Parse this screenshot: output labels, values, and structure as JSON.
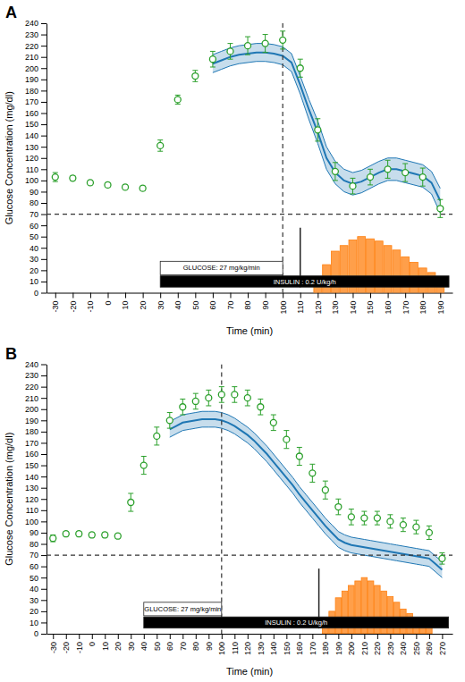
{
  "chart_data": [
    {
      "type": "combo",
      "title": "A",
      "xlabel": "Time (min)",
      "ylabel": "Glucose Concentration (mg/dl)",
      "xlim": [
        -35,
        197
      ],
      "ylim": [
        0,
        240
      ],
      "xticks": [
        -30,
        -20,
        -10,
        0,
        10,
        20,
        30,
        40,
        50,
        60,
        70,
        80,
        90,
        100,
        110,
        120,
        130,
        140,
        150,
        160,
        170,
        180,
        190
      ],
      "yticks": [
        0,
        10,
        20,
        30,
        40,
        50,
        60,
        70,
        80,
        90,
        100,
        110,
        120,
        130,
        140,
        150,
        160,
        170,
        180,
        190,
        200,
        210,
        220,
        230,
        240
      ],
      "series": [
        {
          "type": "band",
          "x": [
            60,
            65,
            70,
            75,
            80,
            85,
            90,
            95,
            100,
            105,
            110,
            115,
            120,
            125,
            130,
            135,
            140,
            145,
            150,
            155,
            160,
            165,
            170,
            175,
            180,
            185,
            190
          ],
          "values": [
            204,
            207,
            210,
            212,
            213,
            214,
            214,
            213,
            211,
            205,
            185,
            163,
            143,
            120,
            107,
            100,
            97,
            99,
            103,
            107,
            110,
            110,
            108,
            106,
            104,
            98,
            82
          ],
          "upper": [
            212,
            215,
            218,
            220,
            221,
            222,
            222,
            221,
            219,
            213,
            193,
            172,
            153,
            130,
            117,
            110,
            107,
            109,
            113,
            117,
            120,
            120,
            118,
            116,
            114,
            108,
            93
          ],
          "lower": [
            196,
            199,
            202,
            204,
            205,
            206,
            206,
            205,
            203,
            197,
            177,
            154,
            133,
            110,
            97,
            90,
            87,
            89,
            93,
            97,
            100,
            100,
            98,
            96,
            94,
            88,
            71
          ]
        },
        {
          "type": "bar",
          "x": [
            120,
            125,
            130,
            135,
            140,
            145,
            150,
            155,
            160,
            165,
            170,
            175,
            180,
            185,
            190
          ],
          "values": [
            12,
            25,
            37,
            42,
            47,
            50,
            48,
            46,
            42,
            38,
            32,
            27,
            22,
            18,
            14
          ]
        },
        {
          "type": "scatter",
          "marker": "circle",
          "x": [
            -30,
            -20,
            -10,
            0,
            10,
            20,
            30,
            40,
            50,
            60,
            70,
            80,
            90,
            100,
            110,
            120,
            130,
            140,
            150,
            160,
            170,
            180,
            190
          ],
          "values": [
            103,
            102,
            98,
            96,
            94,
            93,
            131,
            172,
            193,
            208,
            215,
            220,
            222,
            225,
            200,
            145,
            108,
            95,
            103,
            110,
            107,
            103,
            75
          ],
          "errors": [
            4,
            2,
            2,
            2,
            2,
            2,
            5,
            4,
            5,
            7,
            7,
            8,
            8,
            8,
            8,
            10,
            8,
            7,
            7,
            8,
            8,
            8,
            8
          ]
        }
      ],
      "annotations": [
        {
          "type": "hline",
          "y": 70,
          "line_style": "dashed"
        },
        {
          "type": "vline",
          "x": 100,
          "line_style": "dashed"
        },
        {
          "type": "arrow",
          "x": 110,
          "y_start": 58,
          "y_end": 5
        },
        {
          "type": "box",
          "text": "GLUCOSE: 27 mg/kg/min",
          "x1": 30,
          "x2": 100,
          "y1": 16,
          "y2": 28,
          "color": "white"
        },
        {
          "type": "box",
          "text": "INSULIN : 0.2 U/kg/h",
          "x1": 30,
          "x2": 195,
          "y1": 5,
          "y2": 15,
          "color": "black"
        }
      ]
    },
    {
      "type": "combo",
      "title": "B",
      "xlabel": "Time (min)",
      "ylabel": "Glucose Concentration (mg/dl)",
      "xlim": [
        -35,
        278
      ],
      "ylim": [
        0,
        240
      ],
      "xticks": [
        -30,
        -20,
        -10,
        0,
        10,
        20,
        30,
        40,
        50,
        60,
        70,
        80,
        90,
        100,
        110,
        120,
        130,
        140,
        150,
        160,
        170,
        180,
        190,
        200,
        210,
        220,
        230,
        240,
        250,
        260,
        270
      ],
      "yticks": [
        0,
        10,
        20,
        30,
        40,
        50,
        60,
        70,
        80,
        90,
        100,
        110,
        120,
        130,
        140,
        150,
        160,
        170,
        180,
        190,
        200,
        210,
        220,
        230,
        240
      ],
      "series": [
        {
          "type": "band",
          "x": [
            60,
            65,
            70,
            75,
            80,
            85,
            90,
            95,
            100,
            105,
            110,
            115,
            120,
            125,
            130,
            135,
            140,
            145,
            150,
            155,
            160,
            165,
            170,
            175,
            180,
            185,
            190,
            195,
            200,
            205,
            210,
            215,
            220,
            225,
            230,
            235,
            240,
            245,
            250,
            255,
            260,
            265,
            270
          ],
          "values": [
            182,
            185,
            188,
            189,
            190,
            191,
            191,
            191,
            190,
            188,
            185,
            181,
            177,
            172,
            166,
            160,
            153,
            146,
            139,
            132,
            124,
            117,
            110,
            103,
            96,
            90,
            84,
            81,
            79,
            78,
            77,
            76,
            75,
            74,
            73,
            72,
            71,
            70,
            69,
            68,
            67,
            62,
            57
          ],
          "upper": [
            189,
            192,
            195,
            196,
            197,
            198,
            198,
            198,
            197,
            195,
            192,
            188,
            184,
            179,
            173,
            167,
            160,
            153,
            146,
            139,
            131,
            124,
            117,
            110,
            103,
            97,
            91,
            88,
            86,
            85,
            84,
            83,
            82,
            81,
            80,
            79,
            78,
            77,
            76,
            75,
            74,
            69,
            64
          ],
          "lower": [
            175,
            178,
            181,
            182,
            183,
            184,
            184,
            184,
            183,
            181,
            178,
            174,
            170,
            165,
            159,
            153,
            146,
            139,
            132,
            125,
            117,
            110,
            103,
            96,
            89,
            83,
            77,
            74,
            72,
            71,
            70,
            69,
            68,
            67,
            66,
            65,
            64,
            63,
            62,
            61,
            60,
            55,
            50
          ]
        },
        {
          "type": "bar",
          "x": [
            180,
            185,
            190,
            195,
            200,
            205,
            210,
            215,
            220,
            225,
            230,
            235,
            240,
            245,
            250,
            255,
            260
          ],
          "values": [
            10,
            20,
            32,
            38,
            43,
            47,
            50,
            47,
            43,
            38,
            33,
            28,
            22,
            18,
            14,
            10,
            8
          ]
        },
        {
          "type": "scatter",
          "marker": "circle",
          "x": [
            -30,
            -20,
            -10,
            0,
            10,
            20,
            30,
            40,
            50,
            60,
            70,
            80,
            90,
            100,
            110,
            120,
            130,
            140,
            150,
            160,
            170,
            180,
            190,
            200,
            210,
            220,
            230,
            240,
            250,
            260,
            270
          ],
          "values": [
            85,
            89,
            89,
            88,
            88,
            87,
            117,
            150,
            176,
            190,
            202,
            207,
            210,
            213,
            213,
            210,
            202,
            188,
            173,
            158,
            143,
            128,
            113,
            104,
            103,
            103,
            100,
            97,
            95,
            90,
            67
          ],
          "errors": [
            3,
            2,
            2,
            2,
            2,
            2,
            8,
            8,
            8,
            7,
            7,
            7,
            7,
            7,
            7,
            7,
            7,
            7,
            8,
            8,
            8,
            8,
            7,
            7,
            6,
            6,
            6,
            6,
            6,
            6,
            5
          ]
        }
      ],
      "annotations": [
        {
          "type": "hline",
          "y": 70,
          "line_style": "dashed"
        },
        {
          "type": "vline",
          "x": 100,
          "line_style": "dashed"
        },
        {
          "type": "arrow",
          "x": 175,
          "y_start": 58,
          "y_end": 5
        },
        {
          "type": "box",
          "text": "GLUCOSE: 27 mg/kg/min",
          "x1": 40,
          "x2": 100,
          "y1": 16,
          "y2": 28,
          "color": "white"
        },
        {
          "type": "box",
          "text": "INSULIN : 0.2 U/kg/h",
          "x1": 40,
          "x2": 275,
          "y1": 5,
          "y2": 15,
          "color": "black"
        }
      ]
    }
  ]
}
